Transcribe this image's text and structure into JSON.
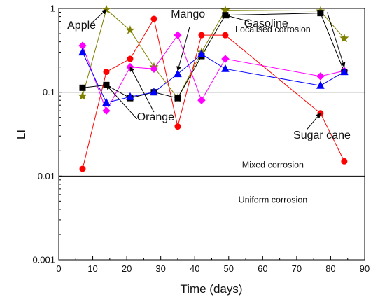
{
  "chart_data": {
    "type": "line",
    "xlabel": "Time (days)",
    "ylabel": "LI",
    "xlim": [
      0,
      90
    ],
    "ylim": [
      0.001,
      1
    ],
    "y_scale": "log",
    "x_ticks": [
      0,
      10,
      20,
      30,
      40,
      50,
      60,
      70,
      80,
      90
    ],
    "y_ticks": [
      {
        "value": 0.001,
        "label": "0.001"
      },
      {
        "value": 0.01,
        "label": "0.01"
      },
      {
        "value": 0.1,
        "label": "0.1"
      },
      {
        "value": 1,
        "label": "1"
      }
    ],
    "grid": false,
    "reference_lines": [
      0.1,
      0.01
    ],
    "regions": [
      {
        "label": "Localised corrosion",
        "x": 63,
        "y": 0.52
      },
      {
        "label": "Mixed corrosion",
        "x": 63,
        "y": 0.0125
      },
      {
        "label": "Uniform corrosion",
        "x": 63,
        "y": 0.0048
      }
    ],
    "series": [
      {
        "name": "Apple",
        "color": "#808000",
        "marker": "star",
        "x": [
          7,
          14,
          21,
          28,
          35,
          42,
          49,
          77,
          84
        ],
        "y": [
          0.09,
          0.97,
          0.55,
          0.2,
          0.085,
          0.3,
          0.95,
          0.93,
          0.44
        ]
      },
      {
        "name": "Mango",
        "color": "#ff00ff",
        "marker": "diamond",
        "x": [
          7,
          14,
          21,
          28,
          35,
          42,
          49,
          77,
          84
        ],
        "y": [
          0.36,
          0.06,
          0.2,
          0.19,
          0.48,
          0.08,
          0.25,
          0.155,
          0.18
        ]
      },
      {
        "name": "Gasoline",
        "color": "#000000",
        "marker": "square",
        "x": [
          7,
          14,
          21,
          28,
          35,
          42,
          49,
          77,
          84
        ],
        "y": [
          0.113,
          0.122,
          0.085,
          0.1,
          0.085,
          0.27,
          0.83,
          0.88,
          0.175
        ]
      },
      {
        "name": "Orange",
        "color": "#0000ff",
        "marker": "triangle",
        "x": [
          7,
          14,
          21,
          28,
          35,
          42,
          49,
          77,
          84
        ],
        "y": [
          0.3,
          0.075,
          0.088,
          0.1,
          0.165,
          0.285,
          0.19,
          0.12,
          0.175
        ]
      },
      {
        "name": "Sugar cane",
        "color": "#ff0000",
        "marker": "circle",
        "x": [
          7,
          14,
          21,
          28,
          35,
          42,
          49,
          77,
          84
        ],
        "y": [
          0.0122,
          0.175,
          0.25,
          0.75,
          0.039,
          0.48,
          0.48,
          0.056,
          0.015
        ]
      }
    ],
    "annotations": [
      {
        "text": "Apple",
        "x": 2.5,
        "y": 0.57,
        "arrow_to": [
          14,
          0.97
        ]
      },
      {
        "text": "Mango",
        "x": 33,
        "y": 0.78,
        "arrow_to": [
          35,
          0.18
        ]
      },
      {
        "text": "Gasoline",
        "x": 54.5,
        "y": 0.6,
        "arrow_to": [
          49,
          0.83
        ]
      },
      {
        "text": "Orange",
        "x": 23,
        "y": 0.046,
        "arrow_to": [
          21,
          0.2
        ]
      },
      {
        "text": "Sugar cane",
        "x": 69,
        "y": 0.028,
        "arrow_to": [
          77,
          0.056
        ]
      }
    ],
    "extra_arrows": [
      {
        "from": [
          23,
          0.048
        ],
        "to": [
          14,
          0.122
        ]
      },
      {
        "from": [
          79,
          0.9
        ],
        "to": [
          84,
          0.2
        ]
      }
    ]
  }
}
